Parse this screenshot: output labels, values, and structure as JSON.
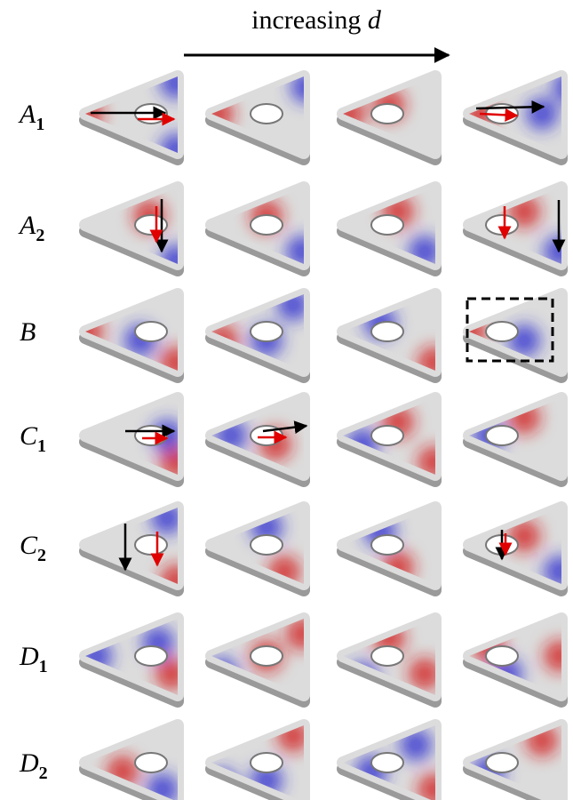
{
  "header": {
    "text": "increasing",
    "variable": "d"
  },
  "rows": [
    {
      "letter": "A",
      "sub": "1"
    },
    {
      "letter": "A",
      "sub": "2"
    },
    {
      "letter": "B"
    },
    {
      "letter": "C",
      "sub": "1"
    },
    {
      "letter": "C",
      "sub": "2"
    },
    {
      "letter": "D",
      "sub": "1"
    },
    {
      "letter": "D",
      "sub": "2"
    }
  ]
}
